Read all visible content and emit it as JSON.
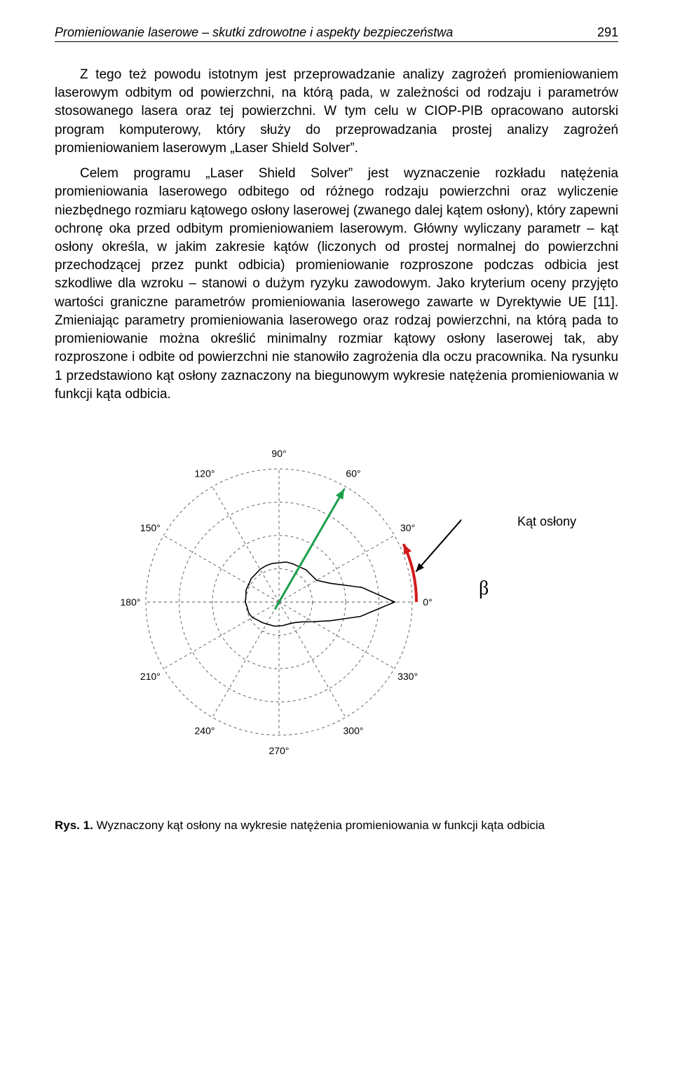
{
  "header": {
    "title": "Promieniowanie laserowe – skutki zdrowotne i aspekty bezpieczeństwa",
    "page_number": "291"
  },
  "paragraph": {
    "p1": "Z tego też powodu istotnym jest przeprowadzanie analizy zagrożeń promieniowaniem laserowym odbitym od powierzchni, na którą pada, w zależności od rodzaju i parametrów stosowanego lasera oraz tej powierzchni. W tym celu w CIOP-PIB opracowano autorski program komputerowy, który służy do przeprowadzania prostej analizy zagrożeń promieniowaniem laserowym „Laser Shield Solver”.",
    "p2": "Celem programu „Laser Shield Solver” jest wyznaczenie rozkładu natężenia promieniowania laserowego odbitego od różnego rodzaju powierzchni oraz wyliczenie niezbędnego rozmiaru kątowego osłony laserowej (zwanego dalej kątem osłony), który zapewni ochronę oka przed odbitym promieniowaniem laserowym. Główny wyliczany parametr – kąt osłony określa, w jakim zakresie kątów (liczonych od prostej normalnej do powierzchni przechodzącej przez punkt odbicia) promieniowanie rozproszone podczas odbicia jest szkodliwe dla wzroku – stanowi o dużym ryzyku zawodowym. Jako kryterium oceny przyjęto wartości graniczne parametrów promieniowania laserowego zawarte w Dyrektywie UE [11]. Zmieniając parametry promieniowania laserowego oraz rodzaj powierzchni, na którą pada to promieniowanie można określić minimalny rozmiar kątowy osłony laserowej tak, aby rozproszone i odbite od powierzchni nie stanowiło zagrożenia dla oczu pracownika. Na rysunku 1 przedstawiono kąt osłony zaznaczony na biegunowym wykresie natężenia promieniowania w funkcji kąta odbicia."
  },
  "figure": {
    "annotation_label": "Kąt osłony",
    "annotation_symbol": "β",
    "caption_prefix": "Rys. 1.",
    "caption_text": "Wyznaczony kąt osłony na wykresie natężenia promieniowania w funkcji kąta odbicia",
    "polar": {
      "angle_ticks": [
        0,
        30,
        60,
        90,
        120,
        150,
        180,
        210,
        240,
        270,
        300,
        330
      ],
      "tick_labels": [
        "0°",
        "30°",
        "60°",
        "90°",
        "120°",
        "150°",
        "180°",
        "210°",
        "240°",
        "270°",
        "300°",
        "330°"
      ],
      "outer_radius": 190,
      "inner_rings": [
        47.5,
        95,
        142.5,
        190
      ],
      "grid_color": "#555555",
      "label_fontsize": 14,
      "background_color": "#ffffff",
      "beam_angle_deg": 60,
      "beam_color": "#1aa04a",
      "beam_width": 3,
      "arc_start_deg": 0,
      "arc_end_deg": 25,
      "arc_color": "#d11a1a",
      "arc_width": 4,
      "arrow_color": "#000000",
      "lobe": {
        "stroke": "#000000",
        "stroke_width": 1.6,
        "angles": [
          0,
          10,
          20,
          30,
          40,
          50,
          60,
          70,
          80,
          90,
          100,
          110,
          120,
          130,
          140,
          150,
          160,
          170,
          180,
          190,
          200,
          210,
          220,
          230,
          240,
          250,
          260,
          270,
          280,
          290,
          300,
          310,
          320,
          330,
          340,
          350,
          360
        ],
        "radii": [
          165,
          120,
          78,
          62,
          60,
          60,
          58,
          58,
          58,
          56,
          56,
          55,
          54,
          52,
          52,
          50,
          50,
          48,
          48,
          46,
          46,
          44,
          40,
          38,
          36,
          35,
          35,
          34,
          34,
          34,
          35,
          38,
          44,
          56,
          78,
          118,
          165
        ]
      }
    }
  }
}
